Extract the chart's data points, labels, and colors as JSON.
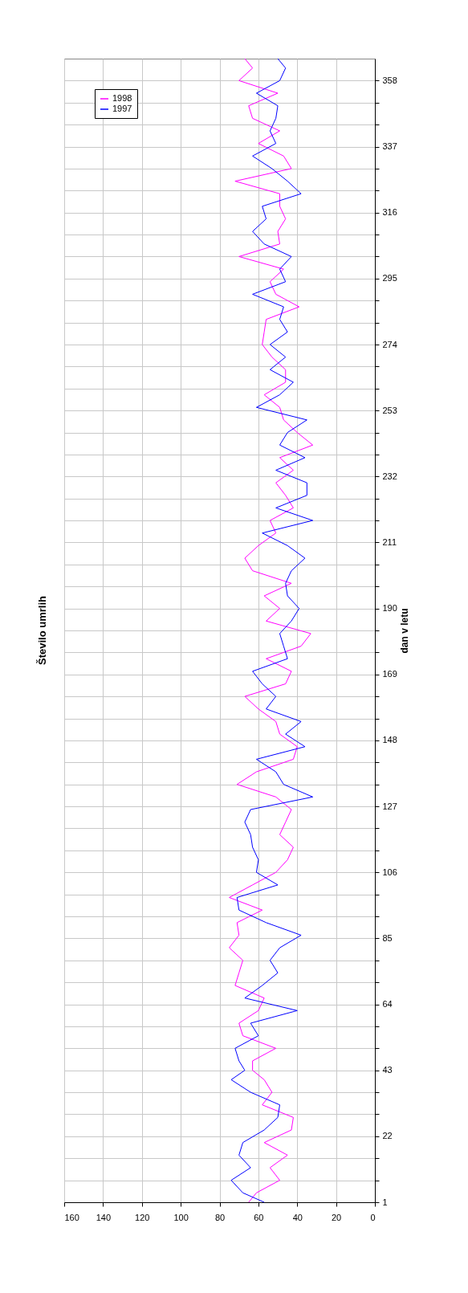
{
  "chart_data": {
    "type": "line",
    "title": "Število umrlih",
    "ylabel": "dan v letu",
    "ylim": [
      1,
      365
    ],
    "yticks": [
      1,
      {
        "value": 8,
        "label": null
      },
      {
        "value": 15,
        "label": null
      },
      22,
      {
        "value": 29,
        "label": null
      },
      {
        "value": 36,
        "label": null
      },
      43,
      {
        "value": 50,
        "label": null
      },
      {
        "value": 57,
        "label": null
      },
      64,
      {
        "value": 71,
        "label": null
      },
      {
        "value": 78,
        "label": null
      },
      85,
      {
        "value": 92,
        "label": null
      },
      {
        "value": 99,
        "label": null
      },
      106,
      {
        "value": 113,
        "label": null
      },
      {
        "value": 120,
        "label": null
      },
      127,
      {
        "value": 134,
        "label": null
      },
      {
        "value": 141,
        "label": null
      },
      148,
      {
        "value": 155,
        "label": null
      },
      {
        "value": 162,
        "label": null
      },
      169,
      {
        "value": 176,
        "label": null
      },
      {
        "value": 183,
        "label": null
      },
      190,
      {
        "value": 197,
        "label": null
      },
      {
        "value": 204,
        "label": null
      },
      211,
      {
        "value": 218,
        "label": null
      },
      {
        "value": 225,
        "label": null
      },
      232,
      {
        "value": 239,
        "label": null
      },
      {
        "value": 246,
        "label": null
      },
      253,
      {
        "value": 260,
        "label": null
      },
      {
        "value": 267,
        "label": null
      },
      274,
      {
        "value": 281,
        "label": null
      },
      {
        "value": 288,
        "label": null
      },
      295,
      {
        "value": 302,
        "label": null
      },
      {
        "value": 309,
        "label": null
      },
      316,
      {
        "value": 323,
        "label": null
      },
      {
        "value": 330,
        "label": null
      },
      337,
      {
        "value": 344,
        "label": null
      },
      {
        "value": 351,
        "label": null
      },
      358
    ],
    "xlim": [
      160,
      0
    ],
    "xticks": [
      0,
      20,
      40,
      60,
      80,
      100,
      120,
      140,
      160
    ],
    "grid": true,
    "legend": "top left",
    "marker": "none",
    "line_style": "solid",
    "series": [
      {
        "name": "1998",
        "color": "#ff00ff",
        "x": [
          65,
          61,
          49,
          54,
          45,
          57,
          43,
          42,
          58,
          53,
          57,
          63,
          63,
          51,
          68,
          70,
          60,
          57,
          72,
          70,
          68,
          75,
          70,
          71,
          58,
          75,
          63,
          51,
          45,
          42,
          49,
          46,
          43,
          51,
          71,
          61,
          42,
          40,
          49,
          51,
          60,
          67,
          46,
          43,
          56,
          38,
          33,
          56,
          49,
          57,
          43,
          63,
          67,
          60,
          51,
          54,
          42,
          46,
          51,
          42,
          49,
          32,
          40,
          47,
          49,
          57,
          46,
          46,
          53,
          58,
          57,
          56,
          39,
          51,
          54,
          47,
          70,
          49,
          50,
          46,
          49,
          49,
          72,
          43,
          47,
          60,
          49,
          63,
          65,
          50,
          70,
          63,
          67
        ],
        "values": [
          1,
          4,
          8,
          12,
          16,
          20,
          24,
          28,
          32,
          36,
          40,
          43,
          46,
          50,
          54,
          58,
          62,
          66,
          70,
          74,
          78,
          82,
          86,
          90,
          94,
          98,
          102,
          106,
          110,
          114,
          118,
          122,
          126,
          130,
          134,
          138,
          142,
          146,
          150,
          154,
          158,
          162,
          166,
          170,
          174,
          178,
          182,
          186,
          190,
          194,
          198,
          202,
          206,
          210,
          214,
          218,
          222,
          226,
          230,
          234,
          238,
          242,
          246,
          250,
          254,
          258,
          262,
          266,
          270,
          274,
          278,
          282,
          286,
          290,
          294,
          298,
          302,
          306,
          310,
          314,
          318,
          322,
          326,
          330,
          334,
          338,
          342,
          346,
          350,
          354,
          358,
          362,
          365
        ]
      },
      {
        "name": "1997",
        "color": "#0000ff",
        "x": [
          57,
          68,
          74,
          64,
          70,
          68,
          57,
          50,
          49,
          64,
          74,
          67,
          70,
          72,
          60,
          64,
          40,
          67,
          58,
          50,
          54,
          49,
          38,
          56,
          70,
          71,
          50,
          61,
          60,
          63,
          64,
          67,
          64,
          32,
          47,
          51,
          61,
          36,
          46,
          38,
          56,
          51,
          58,
          63,
          45,
          47,
          49,
          43,
          39,
          45,
          46,
          43,
          36,
          45,
          58,
          32,
          51,
          35,
          35,
          51,
          36,
          49,
          45,
          35,
          61,
          49,
          42,
          54,
          46,
          54,
          45,
          49,
          47,
          63,
          46,
          49,
          43,
          57,
          63,
          56,
          58,
          38,
          45,
          53,
          63,
          51,
          54,
          51,
          50,
          61,
          49,
          46,
          50
        ],
        "values": [
          1,
          4,
          8,
          12,
          16,
          20,
          24,
          28,
          32,
          36,
          40,
          43,
          46,
          50,
          54,
          58,
          62,
          66,
          70,
          74,
          78,
          82,
          86,
          90,
          94,
          98,
          102,
          106,
          110,
          114,
          118,
          122,
          126,
          130,
          134,
          138,
          142,
          146,
          150,
          154,
          158,
          162,
          166,
          170,
          174,
          178,
          182,
          186,
          190,
          194,
          198,
          202,
          206,
          210,
          214,
          218,
          222,
          226,
          230,
          234,
          238,
          242,
          246,
          250,
          254,
          258,
          262,
          266,
          270,
          274,
          278,
          282,
          286,
          290,
          294,
          298,
          302,
          306,
          310,
          314,
          318,
          322,
          326,
          330,
          334,
          338,
          342,
          346,
          350,
          354,
          358,
          362,
          365
        ]
      }
    ]
  }
}
